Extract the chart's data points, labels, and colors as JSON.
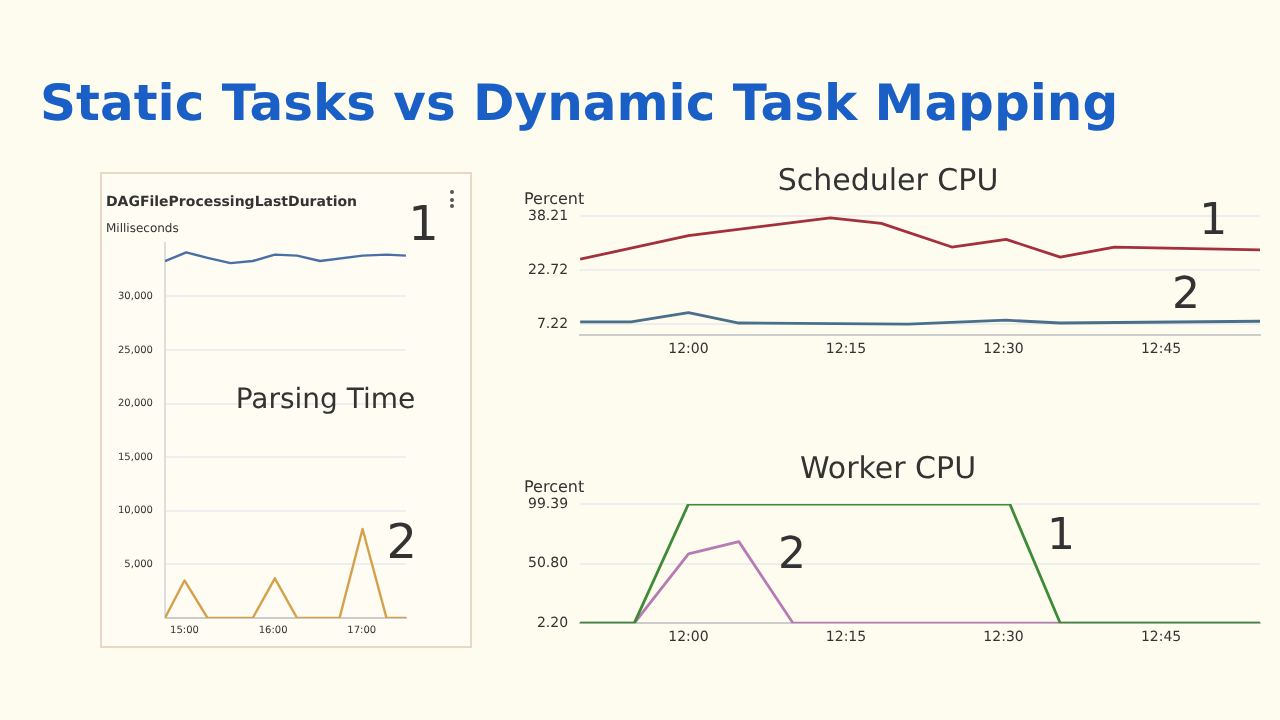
{
  "chart_data": [
    {
      "type": "other",
      "title": "Static Tasks vs Dynamic Task Mapping"
    },
    {
      "type": "line",
      "title": "DAGFileProcessingLastDuration",
      "ylabel": "Milliseconds",
      "annotations": [
        "Parsing Time"
      ],
      "xlim": [
        14.78,
        17.5
      ],
      "xticks": [
        {
          "value": 15,
          "label": "15:00"
        },
        {
          "value": 16,
          "label": "16:00"
        },
        {
          "value": 17,
          "label": "17:00"
        }
      ],
      "ylim": [
        0,
        35000
      ],
      "yticks": [
        {
          "value": 0,
          "label": null
        },
        {
          "value": 5000,
          "label": "5,000"
        },
        {
          "value": 10000,
          "label": "10,000"
        },
        {
          "value": 15000,
          "label": "15,000"
        },
        {
          "value": 20000,
          "label": "20,000"
        },
        {
          "value": 25000,
          "label": "25,000"
        },
        {
          "value": 30000,
          "label": "30,000"
        }
      ],
      "grid": "y",
      "legend": false,
      "marker": "none",
      "line_style": "solid",
      "series": [
        {
          "name": "1",
          "color": "#4a6fa5",
          "x": [
            14.78,
            15.02,
            15.26,
            15.52,
            15.77,
            16.02,
            16.27,
            16.53,
            17.01,
            17.28,
            17.5
          ],
          "values": [
            33300,
            34100,
            33600,
            33100,
            33300,
            33900,
            33800,
            33300,
            33800,
            33900,
            33800
          ]
        },
        {
          "name": "2",
          "color": "#d4a04a",
          "x": [
            14.78,
            15.0,
            15.26,
            15.77,
            16.02,
            16.27,
            16.75,
            17.01,
            17.28,
            17.5
          ],
          "values": [
            0,
            3500,
            0,
            0,
            3700,
            0,
            0,
            8300,
            0,
            0
          ]
        }
      ]
    },
    {
      "type": "line",
      "title": "Scheduler CPU",
      "ylabel": "Percent",
      "xlim": [
        11.828,
        12.907
      ],
      "xticks": [
        {
          "value": 12,
          "label": "12:00"
        },
        {
          "value": 12.25,
          "label": "12:15"
        },
        {
          "value": 12.5,
          "label": "12:30"
        },
        {
          "value": 12.75,
          "label": "12:45"
        }
      ],
      "ylim": [
        4,
        38.21
      ],
      "yticks": [
        7.22,
        22.72,
        38.21
      ],
      "grid": "y",
      "legend": false,
      "marker": "none",
      "line_style": "solid",
      "series": [
        {
          "name": "1",
          "color": "#a3303a",
          "x": [
            11.828,
            12,
            12.225,
            12.306,
            12.418,
            12.504,
            12.59,
            12.676,
            12.907
          ],
          "values": [
            25.8,
            32.6,
            37.7,
            36.1,
            29.3,
            31.5,
            26.4,
            29.3,
            28.5
          ]
        },
        {
          "name": "2",
          "color": "#4a6f8a",
          "x": [
            11.828,
            11.909,
            12,
            12.08,
            12.349,
            12.504,
            12.59,
            12.907
          ],
          "values": [
            7.8,
            7.8,
            10.5,
            7.5,
            7.2,
            8.3,
            7.5,
            8.0
          ]
        }
      ]
    },
    {
      "type": "line",
      "title": "Worker CPU",
      "ylabel": "Percent",
      "xlim": [
        11.828,
        12.907
      ],
      "xticks": [
        {
          "value": 12,
          "label": "12:00"
        },
        {
          "value": 12.25,
          "label": "12:15"
        },
        {
          "value": 12.5,
          "label": "12:30"
        },
        {
          "value": 12.75,
          "label": "12:45"
        }
      ],
      "ylim": [
        2.2,
        99.39
      ],
      "yticks": [
        {
          "value": 2.2,
          "label": "2.20"
        },
        {
          "value": 50.8,
          "label": "50.80"
        },
        99.39
      ],
      "grid": "y",
      "legend": false,
      "marker": "none",
      "line_style": "solid",
      "series": [
        {
          "name": "1",
          "color": "#3d8b37",
          "x": [
            11.828,
            11.914,
            12,
            12.51,
            12.59,
            12.907
          ],
          "values": [
            2.2,
            2.2,
            99.39,
            99.39,
            2.2,
            2.2
          ]
        },
        {
          "name": "2",
          "color": "#b77bb3",
          "x": [
            11.828,
            11.914,
            12,
            12.08,
            12.166,
            12.907
          ],
          "values": [
            2.2,
            2.2,
            58.8,
            68.7,
            2.2,
            2.2
          ]
        }
      ]
    }
  ]
}
